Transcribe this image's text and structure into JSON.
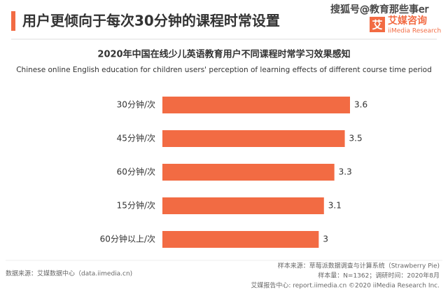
{
  "header": {
    "title": "用户更倾向于每次30分钟的课程时常设置",
    "watermark": "搜狐号@教育那些事er",
    "logo_mark": "艾",
    "logo_name": "艾媒咨询",
    "logo_sub": "iiMedia Research"
  },
  "chart_data": {
    "type": "bar",
    "orientation": "horizontal",
    "title": "2020年中国在线少儿英语教育用户不同课程时常学习效果感知",
    "subtitle": "Chinese online English education for children users' perception of learning effects of different course time period",
    "categories": [
      "30分钟/次",
      "45分钟/次",
      "60分钟/次",
      "15分钟/次",
      "60分钟以上/次"
    ],
    "values": [
      3.6,
      3.5,
      3.3,
      3.1,
      3
    ],
    "color": "#f26b43"
  },
  "footer": {
    "source": "数据来源：艾媒数据中心（data.iimedia.cn)",
    "sample_source": "样本来源：草莓派数据调查与计算系统（Strawberry Pie)",
    "sample_size": "样本量：N=1362；调研时间：2020年8月",
    "report": "艾媒报告中心: report.iimedia.cn ©2020 iiMedia Research Inc."
  }
}
